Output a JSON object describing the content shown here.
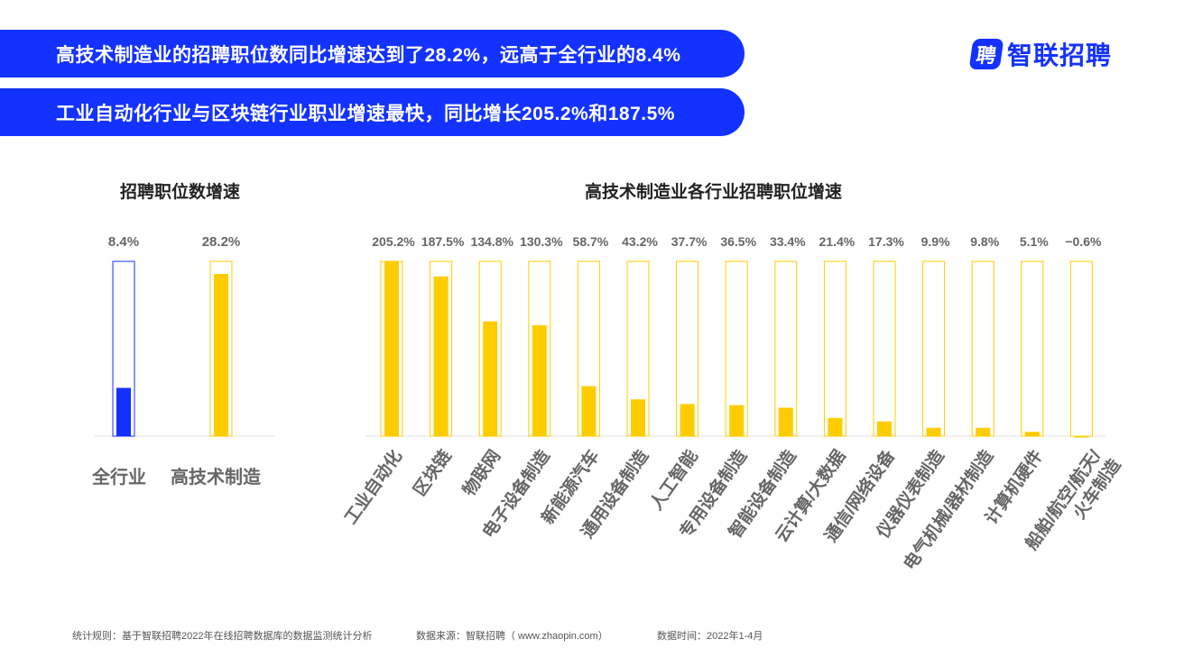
{
  "banners": [
    "高技术制造业的招聘职位数同比增速达到了28.2%，远高于全行业的8.4%",
    "工业自动化行业与区块链行业职业增速最快，同比增长205.2%和187.5%"
  ],
  "logo": {
    "mark": "聘",
    "text": "智联招聘"
  },
  "footer": {
    "rule": "统计规则：基于智联招聘2022年在线招聘数据库的数据监测统计分析",
    "source": "数据来源：智联招聘（ www.zhaopin.com）",
    "period": "数据时间：2022年1-4月"
  },
  "colors": {
    "blue": "#1432ff",
    "yellow": "#ffcc00",
    "axis": "#e0e0e0"
  },
  "chart_data": [
    {
      "type": "bar",
      "title": "招聘职位数增速",
      "categories": [
        "全行业",
        "高技术制造"
      ],
      "values": [
        8.4,
        28.2
      ],
      "labels": [
        "8.4%",
        "28.2%"
      ],
      "colors": [
        "#1432ff",
        "#ffcc00"
      ],
      "ylim": [
        0,
        30.4
      ]
    },
    {
      "type": "bar",
      "title": "高技术制造业各行业招聘职位增速",
      "categories": [
        "工业自动化",
        "区块链",
        "物联网",
        "电子设备制造",
        "新能源汽车",
        "通用设备制造",
        "人工智能",
        "专用设备制造",
        "智能设备制造",
        "云计算/大数据",
        "通信/网络设备",
        "仪器仪表制造",
        "电气机械/器材制造",
        "计算机硬件",
        "船舶/航空/航天/火车制造"
      ],
      "values": [
        205.2,
        187.5,
        134.8,
        130.3,
        58.7,
        43.2,
        37.7,
        36.5,
        33.4,
        21.4,
        17.3,
        9.9,
        9.8,
        5.1,
        -0.6
      ],
      "labels": [
        "205.2%",
        "187.5%",
        "134.8%",
        "130.3%",
        "58.7%",
        "43.2%",
        "37.7%",
        "36.5%",
        "33.4%",
        "21.4%",
        "17.3%",
        "9.9%",
        "9.8%",
        "5.1%",
        "−0.6%"
      ],
      "ylim": [
        0,
        205.2
      ]
    }
  ]
}
